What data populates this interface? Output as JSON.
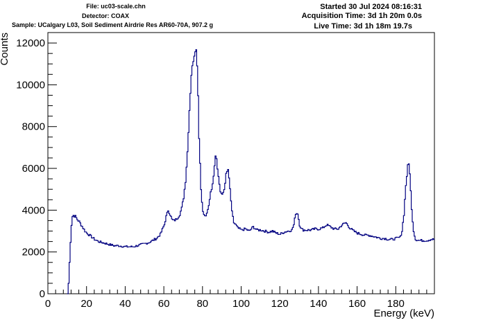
{
  "header": {
    "file": "File: uc03-scale.chn",
    "detector": "Detector: COAX",
    "sample": "Sample: UCalgary L03, Soil Sediment Airdrie Res AR60-70A, 907.2 g",
    "started": "Started 30 Jul 2024 08:16:31",
    "acquisition": "Acquisition Time: 3d 1h 20m 0.0s",
    "live": "Live Time: 3d 1h 18m 19.7s"
  },
  "chart_data": {
    "type": "line",
    "xlabel": "Energy (keV)",
    "ylabel": "Counts",
    "xlim": [
      0,
      200
    ],
    "ylim": [
      0,
      12500
    ],
    "xticks": [
      "0",
      "20",
      "40",
      "60",
      "80",
      "100",
      "120",
      "140",
      "160",
      "180"
    ],
    "yticks": [
      "0",
      "2000",
      "4000",
      "6000",
      "8000",
      "10000",
      "12000"
    ],
    "line_color": "#000080",
    "series": [
      {
        "x": [
          0,
          10,
          10.5,
          11,
          11.5,
          12,
          12.5,
          13,
          14,
          15,
          16,
          17,
          18,
          19,
          20,
          22,
          24,
          26,
          28,
          30,
          32,
          34,
          36,
          38,
          40,
          42,
          44,
          46,
          48,
          50,
          52,
          54,
          56,
          58,
          60,
          61,
          62,
          63,
          64,
          65,
          66,
          67,
          68,
          69,
          70,
          71,
          72,
          73,
          74,
          75,
          76,
          76.5,
          77,
          77.5,
          78,
          79,
          80,
          81,
          82,
          83,
          84,
          85,
          86,
          86.5,
          87,
          88,
          89,
          90,
          91,
          92,
          93,
          94,
          95,
          96,
          97,
          98,
          100,
          102,
          104,
          106,
          108,
          110,
          112,
          114,
          116,
          118,
          120,
          122,
          124,
          126,
          127,
          128,
          129,
          130,
          131,
          132,
          134,
          136,
          138,
          140,
          142,
          144,
          146,
          148,
          150,
          152,
          154,
          156,
          158,
          160,
          162,
          164,
          166,
          168,
          170,
          172,
          174,
          176,
          178,
          180,
          182,
          183,
          184,
          185,
          186,
          186.5,
          187,
          188,
          189,
          190,
          192,
          194,
          196,
          198,
          200
        ],
        "y": [
          0,
          0,
          500,
          1500,
          2500,
          3300,
          3700,
          3750,
          3700,
          3550,
          3450,
          3300,
          3150,
          3000,
          2900,
          2750,
          2600,
          2500,
          2450,
          2400,
          2350,
          2300,
          2300,
          2280,
          2250,
          2250,
          2250,
          2300,
          2350,
          2400,
          2450,
          2550,
          2650,
          2850,
          3300,
          3700,
          4000,
          3800,
          3550,
          3500,
          3550,
          3650,
          3800,
          4100,
          4600,
          5400,
          6800,
          8800,
          10500,
          11200,
          11700,
          11650,
          11000,
          9500,
          7500,
          5000,
          3900,
          3700,
          3800,
          4200,
          4900,
          5200,
          6200,
          6650,
          6500,
          5600,
          4900,
          4700,
          5000,
          5700,
          5950,
          5000,
          3900,
          3400,
          3300,
          3150,
          3050,
          3100,
          3000,
          3200,
          3050,
          3050,
          3000,
          2950,
          3000,
          2900,
          2850,
          2950,
          3000,
          3050,
          3300,
          3850,
          3850,
          3300,
          3100,
          3050,
          3050,
          3050,
          3100,
          3100,
          3150,
          3300,
          3200,
          3100,
          3100,
          3300,
          3400,
          3150,
          3000,
          2900,
          2850,
          2800,
          2800,
          2750,
          2700,
          2650,
          2650,
          2600,
          2600,
          2650,
          2700,
          3000,
          3800,
          5200,
          6100,
          6200,
          5800,
          4000,
          3000,
          2600,
          2550,
          2550,
          2550,
          2600,
          2600
        ]
      }
    ]
  }
}
